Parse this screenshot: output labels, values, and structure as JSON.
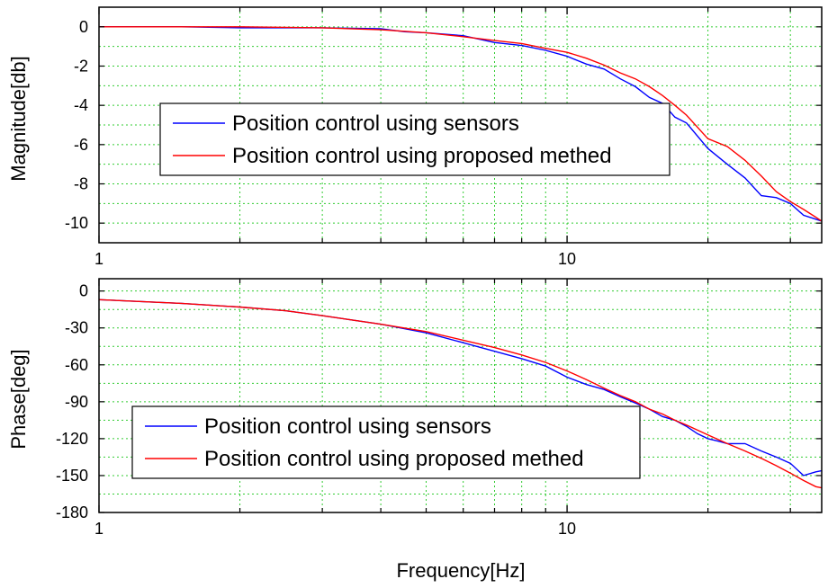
{
  "chart_data": [
    {
      "type": "line",
      "xlabel": "",
      "ylabel": "Magnitude[db]",
      "xscale": "log",
      "xlim": [
        1,
        35
      ],
      "ylim": [
        -11,
        1
      ],
      "xticks": [
        1,
        10
      ],
      "xtick_labels": [
        "1",
        "10"
      ],
      "yticks": [
        0,
        -2,
        -4,
        -6,
        -8,
        -10
      ],
      "ytick_labels": [
        "0",
        "-2",
        "-4",
        "-6",
        "-8",
        "-10"
      ],
      "grid": true,
      "legend_position": "center-left",
      "series": [
        {
          "name": "Position control using sensors",
          "color": "#0000ff",
          "x": [
            1,
            1.5,
            2,
            3,
            4,
            4.5,
            5,
            6,
            7,
            8,
            9,
            10,
            11,
            12,
            13,
            14,
            15,
            16,
            17,
            18,
            20,
            22,
            24,
            26,
            28,
            30,
            32,
            34,
            35
          ],
          "y": [
            0,
            0,
            -0.05,
            -0.05,
            -0.1,
            -0.25,
            -0.3,
            -0.45,
            -0.8,
            -0.95,
            -1.2,
            -1.5,
            -1.9,
            -2.15,
            -2.65,
            -3.05,
            -3.6,
            -3.9,
            -4.6,
            -4.9,
            -6.2,
            -7.0,
            -7.7,
            -8.6,
            -8.7,
            -9.0,
            -9.6,
            -9.8,
            -9.9
          ]
        },
        {
          "name": "Position control using proposed methed",
          "color": "#ff0000",
          "x": [
            1,
            1.5,
            2,
            3,
            4,
            5,
            6,
            7,
            8,
            9,
            10,
            11,
            12,
            13,
            14,
            15,
            16,
            17,
            18,
            20,
            22,
            24,
            26,
            28,
            30,
            32,
            34,
            35
          ],
          "y": [
            0,
            0,
            0,
            -0.05,
            -0.15,
            -0.3,
            -0.5,
            -0.7,
            -0.85,
            -1.1,
            -1.3,
            -1.6,
            -1.95,
            -2.35,
            -2.65,
            -3.05,
            -3.5,
            -4.0,
            -4.5,
            -5.7,
            -6.1,
            -6.8,
            -7.6,
            -8.4,
            -8.9,
            -9.3,
            -9.7,
            -9.9
          ]
        }
      ]
    },
    {
      "type": "line",
      "xlabel": "Frequency[Hz]",
      "ylabel": "Phase[deg]",
      "xscale": "log",
      "xlim": [
        1,
        35
      ],
      "ylim": [
        -180,
        10
      ],
      "xticks": [
        1,
        10
      ],
      "xtick_labels": [
        "1",
        "10"
      ],
      "yticks": [
        0,
        -30,
        -60,
        -90,
        -120,
        -150,
        -180
      ],
      "ytick_labels": [
        "0",
        "-30",
        "-60",
        "-90",
        "-120",
        "-150",
        "-180"
      ],
      "grid": true,
      "legend_position": "bottom-left",
      "series": [
        {
          "name": "Position control using sensors",
          "color": "#0000ff",
          "x": [
            1,
            1.5,
            2,
            2.5,
            3,
            4,
            5,
            6,
            7,
            8,
            9,
            10,
            11,
            12,
            13,
            14,
            15,
            16,
            17,
            18,
            19,
            20,
            21,
            22,
            24,
            26,
            28,
            30,
            32,
            34,
            35
          ],
          "y": [
            -7,
            -10,
            -13,
            -16,
            -20,
            -27,
            -34,
            -42,
            -49,
            -55,
            -61,
            -70,
            -76,
            -80,
            -86,
            -91,
            -96,
            -102,
            -105,
            -110,
            -116,
            -120,
            -122,
            -124,
            -124,
            -130,
            -135,
            -140,
            -150,
            -147,
            -146
          ]
        },
        {
          "name": "Position control using proposed methed",
          "color": "#ff0000",
          "x": [
            1,
            1.5,
            2,
            2.5,
            3,
            4,
            5,
            6,
            7,
            8,
            9,
            10,
            11,
            12,
            13,
            14,
            15,
            16,
            17,
            18,
            20,
            22,
            24,
            26,
            28,
            30,
            32,
            34,
            35
          ],
          "y": [
            -7,
            -10,
            -13,
            -16,
            -20,
            -27,
            -33,
            -40,
            -46,
            -52,
            -58,
            -65,
            -72,
            -79,
            -85,
            -90,
            -96,
            -100,
            -105,
            -109,
            -117,
            -124,
            -130,
            -136,
            -142,
            -148,
            -154,
            -159,
            -160
          ]
        }
      ]
    }
  ]
}
